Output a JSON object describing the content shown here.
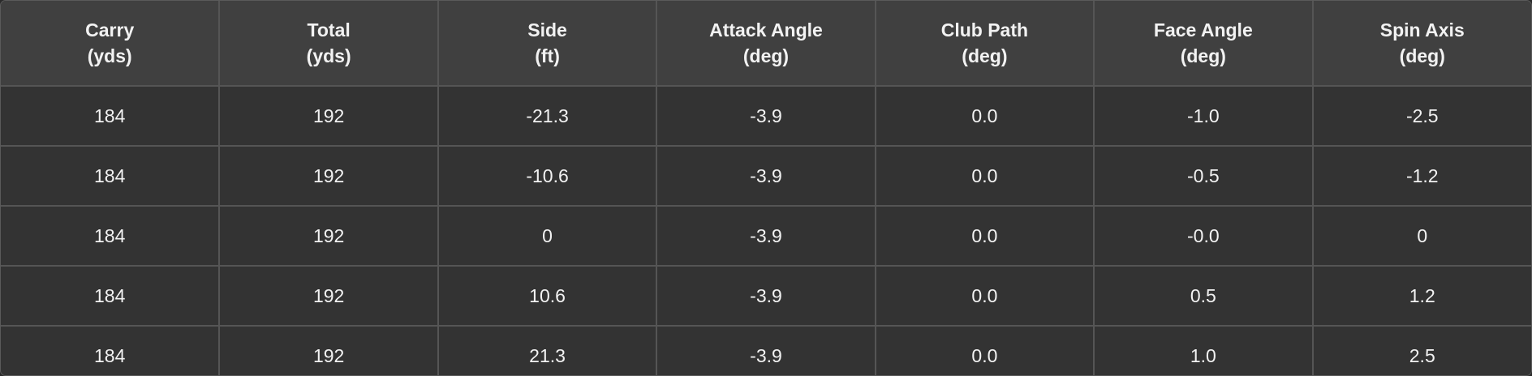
{
  "table": {
    "columns": [
      {
        "name": "Carry",
        "unit": "(yds)"
      },
      {
        "name": "Total",
        "unit": "(yds)"
      },
      {
        "name": "Side",
        "unit": "(ft)"
      },
      {
        "name": "Attack Angle",
        "unit": "(deg)"
      },
      {
        "name": "Club Path",
        "unit": "(deg)"
      },
      {
        "name": "Face Angle",
        "unit": "(deg)"
      },
      {
        "name": "Spin Axis",
        "unit": "(deg)"
      }
    ],
    "rows": [
      [
        "184",
        "192",
        "-21.3",
        "-3.9",
        "0.0",
        "-1.0",
        "-2.5"
      ],
      [
        "184",
        "192",
        "-10.6",
        "-3.9",
        "0.0",
        "-0.5",
        "-1.2"
      ],
      [
        "184",
        "192",
        "0",
        "-3.9",
        "0.0",
        "-0.0",
        "0"
      ],
      [
        "184",
        "192",
        "10.6",
        "-3.9",
        "0.0",
        "0.5",
        "1.2"
      ],
      [
        "184",
        "192",
        "21.3",
        "-3.9",
        "0.0",
        "1.0",
        "2.5"
      ]
    ]
  },
  "colors": {
    "header_bg": "#404040",
    "row_bg": "#333333",
    "border": "#555555",
    "text": "#f2f2f2"
  }
}
